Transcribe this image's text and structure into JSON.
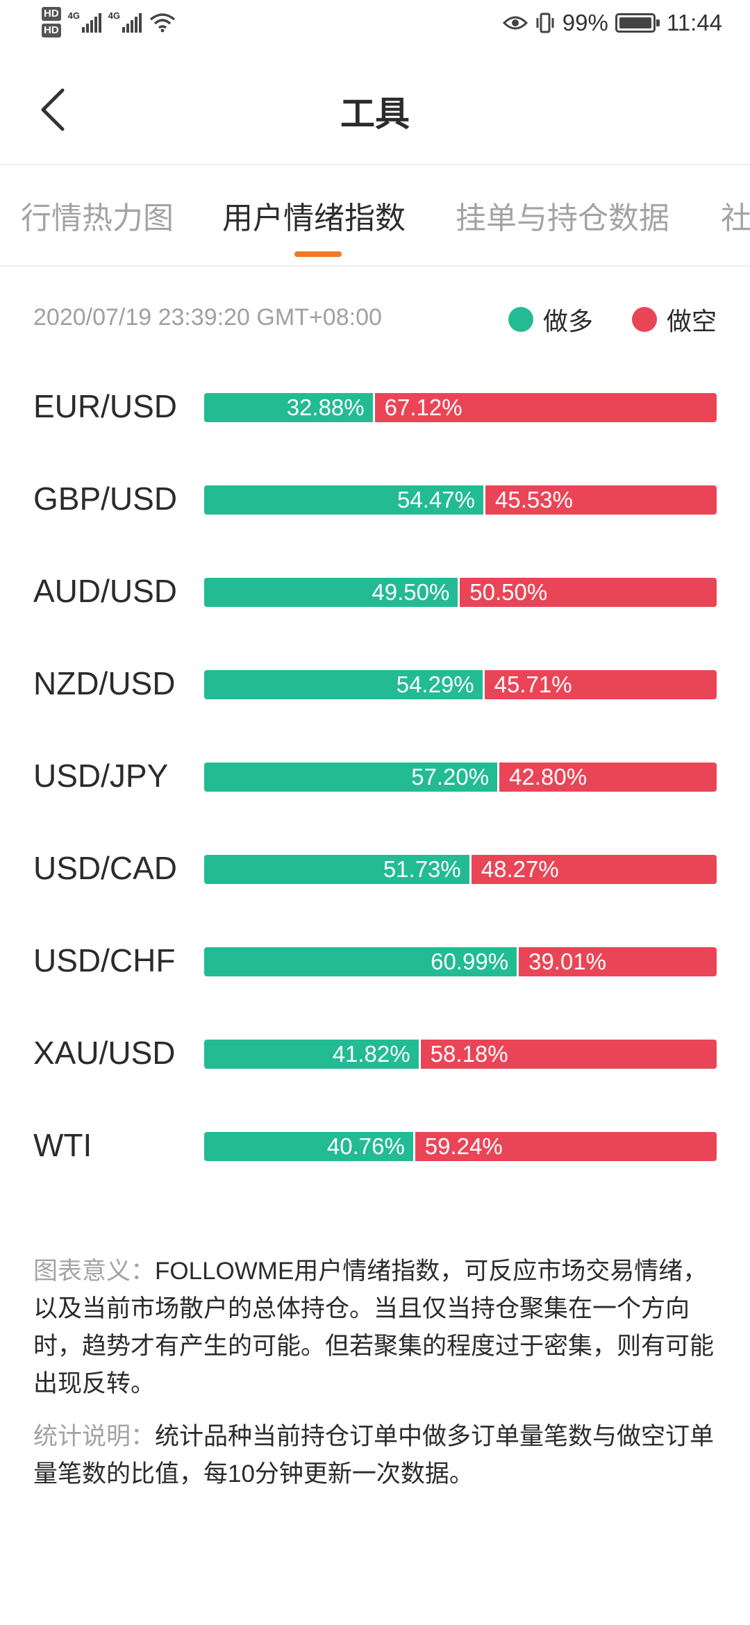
{
  "status_bar": {
    "hd1": "HD",
    "hd2": "HD",
    "sig1_label": "4G",
    "sig2_label": "4G",
    "battery_text": "99%",
    "time": "11:44"
  },
  "header": {
    "title": "工具"
  },
  "tabs": [
    {
      "label": "行情热力图",
      "active": false
    },
    {
      "label": "用户情绪指数",
      "active": true
    },
    {
      "label": "挂单与持仓数据",
      "active": false
    },
    {
      "label": "社",
      "active": false
    }
  ],
  "sentiment": {
    "timestamp": "2020/07/19 23:39:20 GMT+08:00",
    "legend": {
      "long_label": "做多",
      "short_label": "做空"
    },
    "colors": {
      "long": "#22bb94",
      "short": "#ea4557",
      "accent": "#f07a24"
    },
    "rows": [
      {
        "symbol": "EUR/USD",
        "long": 32.88,
        "long_text": "32.88%",
        "short_text": "67.12%"
      },
      {
        "symbol": "GBP/USD",
        "long": 54.47,
        "long_text": "54.47%",
        "short_text": "45.53%"
      },
      {
        "symbol": "AUD/USD",
        "long": 49.5,
        "long_text": "49.50%",
        "short_text": "50.50%"
      },
      {
        "symbol": "NZD/USD",
        "long": 54.29,
        "long_text": "54.29%",
        "short_text": "45.71%"
      },
      {
        "symbol": "USD/JPY",
        "long": 57.2,
        "long_text": "57.20%",
        "short_text": "42.80%"
      },
      {
        "symbol": "USD/CAD",
        "long": 51.73,
        "long_text": "51.73%",
        "short_text": "48.27%"
      },
      {
        "symbol": "USD/CHF",
        "long": 60.99,
        "long_text": "60.99%",
        "short_text": "39.01%"
      },
      {
        "symbol": "XAU/USD",
        "long": 41.82,
        "long_text": "41.82%",
        "short_text": "58.18%"
      },
      {
        "symbol": "WTI",
        "long": 40.76,
        "long_text": "40.76%",
        "short_text": "59.24%"
      }
    ]
  },
  "notes": {
    "meaning_title": "图表意义：",
    "meaning_text": "FOLLOWME用户情绪指数，可反应市场交易情绪，以及当前市场散户的总体持仓。当且仅当持仓聚集在一个方向时，趋势才有产生的可能。但若聚集的程度过于密集，则有可能出现反转。",
    "stats_title": "统计说明：",
    "stats_text": "统计品种当前持仓订单中做多订单量笔数与做空订单量笔数的比值，每10分钟更新一次数据。"
  }
}
